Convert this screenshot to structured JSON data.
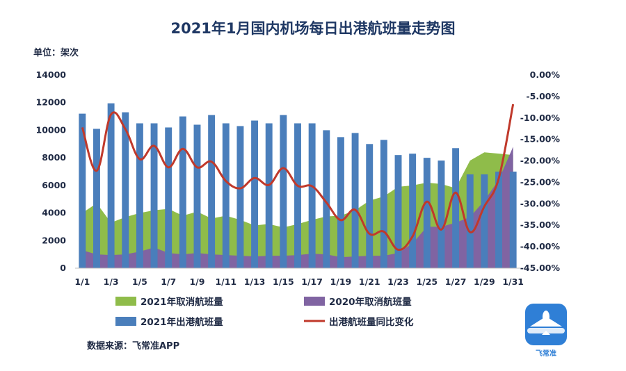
{
  "chart_data": {
    "type": "bar",
    "title": "2021年1月国内机场每日出港航班量走势图",
    "unit_label": "单位：架次",
    "x": [
      "1/1",
      "1/2",
      "1/3",
      "1/4",
      "1/5",
      "1/6",
      "1/7",
      "1/8",
      "1/9",
      "1/10",
      "1/11",
      "1/12",
      "1/13",
      "1/14",
      "1/15",
      "1/16",
      "1/17",
      "1/18",
      "1/19",
      "1/20",
      "1/21",
      "1/22",
      "1/23",
      "1/24",
      "1/25",
      "1/26",
      "1/27",
      "1/28",
      "1/29",
      "1/30",
      "1/31"
    ],
    "x_tick_labels": [
      "1/1",
      "1/3",
      "1/5",
      "1/7",
      "1/9",
      "1/11",
      "1/13",
      "1/15",
      "1/17",
      "1/19",
      "1/21",
      "1/23",
      "1/25",
      "1/27",
      "1/29",
      "1/31"
    ],
    "left_axis": {
      "ylim": [
        0,
        14000
      ],
      "ticks": [
        "0",
        "2000",
        "4000",
        "6000",
        "8000",
        "10000",
        "12000",
        "14000"
      ]
    },
    "right_axis": {
      "ylim": [
        -45,
        0
      ],
      "ticks": [
        "0.00%",
        "-5.00%",
        "-10.00%",
        "-15.00%",
        "-20.00%",
        "-25.00%",
        "-30.00%",
        "-35.00%",
        "-40.00%",
        "-45.00%"
      ]
    },
    "series": [
      {
        "name": "2021年取消航班量",
        "kind": "area",
        "axis": "left",
        "color": "#8fbc4a",
        "values": [
          4000,
          4700,
          3300,
          3700,
          4000,
          4200,
          4300,
          3800,
          4100,
          3600,
          3800,
          3500,
          3100,
          3200,
          2950,
          3200,
          3500,
          3750,
          3800,
          4200,
          4900,
          5200,
          5900,
          6000,
          6200,
          6100,
          5800,
          7800,
          8400,
          8300,
          8200
        ]
      },
      {
        "name": "2020年取消航班量",
        "kind": "area",
        "axis": "left",
        "color": "#8064a2",
        "values": [
          1300,
          1000,
          950,
          1000,
          1200,
          1500,
          1100,
          1000,
          1100,
          1000,
          950,
          900,
          850,
          900,
          900,
          950,
          1050,
          1000,
          800,
          850,
          900,
          900,
          1100,
          1800,
          3000,
          3000,
          3300,
          3700,
          4900,
          6400,
          8800
        ]
      },
      {
        "name": "2021年出港航班量",
        "kind": "bar",
        "axis": "left",
        "color": "#4a7ebb",
        "values": [
          11200,
          10100,
          11950,
          11300,
          10500,
          10500,
          10200,
          11000,
          10400,
          11100,
          10500,
          10300,
          10700,
          10500,
          11100,
          10500,
          10500,
          10000,
          9500,
          9800,
          9000,
          9300,
          8200,
          8300,
          8000,
          7800,
          8700,
          6800,
          6800,
          7000,
          7000
        ]
      },
      {
        "name": "出港航班量同比变化",
        "kind": "line",
        "axis": "right",
        "color": "#c0392b",
        "values": [
          -12.2,
          -22.3,
          -9.2,
          -12.6,
          -19.6,
          -16.5,
          -21.5,
          -17.2,
          -21.5,
          -20.2,
          -24.7,
          -26.4,
          -24.0,
          -25.6,
          -21.7,
          -25.8,
          -25.9,
          -29.7,
          -33.8,
          -31.4,
          -37.0,
          -36.5,
          -40.7,
          -37.6,
          -29.5,
          -36.0,
          -27.4,
          -36.6,
          -30.6,
          -24.1,
          -6.8
        ]
      }
    ],
    "legend": [
      "2021年取消航班量",
      "2020年取消航班量",
      "2021年出港航班量",
      "出港航班量同比变化"
    ],
    "legend_position": "bottom",
    "grid": false
  },
  "source": "数据来源：飞常准APP",
  "logo": {
    "text": "飞常准",
    "icon": "airplane-icon",
    "color": "#2f7fd6"
  }
}
